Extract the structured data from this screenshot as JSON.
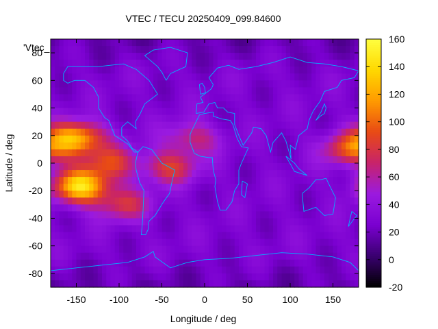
{
  "chart_data": {
    "type": "heatmap",
    "title": "VTEC / TECU 20250409_099.84600",
    "xlabel": "Longitude / deg",
    "ylabel": "Latitude / deg",
    "legend_key": "'Vtec_",
    "xlim": [
      -180,
      180
    ],
    "ylim": [
      -90,
      90
    ],
    "xticks": [
      -150,
      -100,
      -50,
      0,
      50,
      100,
      150
    ],
    "yticks": [
      -80,
      -60,
      -40,
      -20,
      0,
      20,
      40,
      60,
      80
    ],
    "colorbar": {
      "range": [
        -20,
        160
      ],
      "ticks": [
        -20,
        0,
        20,
        40,
        60,
        80,
        100,
        120,
        140,
        160
      ],
      "colors": [
        "#000000",
        "#3a0070",
        "#7a00d0",
        "#9a1ae0",
        "#c8236a",
        "#e84a15",
        "#ff9a00",
        "#ffd800",
        "#ffff40"
      ]
    },
    "background_level": 28,
    "enhancements": [
      {
        "name": "equatorial-anomaly-north-pacific",
        "lon": -150,
        "lat": 18,
        "peak": 125
      },
      {
        "name": "equatorial-anomaly-south-pacific",
        "lon": -145,
        "lat": -17,
        "peak": 140
      },
      {
        "name": "pacific-equatorial-band",
        "lon": -110,
        "lat": 0,
        "peak": 82
      },
      {
        "name": "south-atlantic-band",
        "lon": -40,
        "lat": -3,
        "peak": 80
      },
      {
        "name": "west-africa-band",
        "lon": -15,
        "lat": 18,
        "peak": 70
      },
      {
        "name": "west-pacific-enhancement",
        "lon": 170,
        "lat": 10,
        "peak": 90
      },
      {
        "name": "south-america-south-band",
        "lon": -95,
        "lat": -30,
        "peak": 75
      }
    ],
    "grid": false,
    "colorbar_position": "right"
  }
}
